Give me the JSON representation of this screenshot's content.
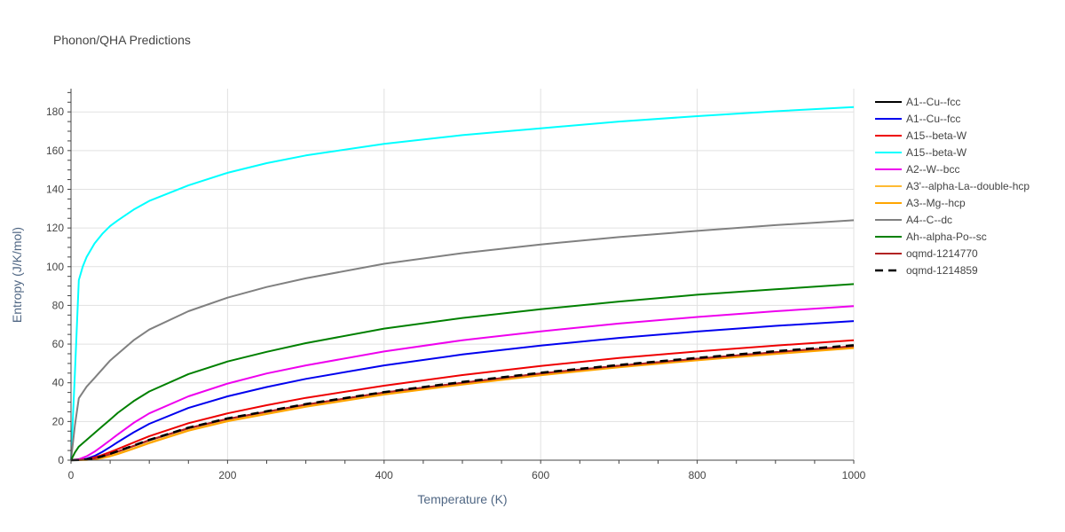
{
  "chart_data": {
    "type": "line",
    "title": "Phonon/QHA Predictions",
    "xlabel": "Temperature (K)",
    "ylabel": "Entropy (J/K/mol)",
    "xlim": [
      0,
      1000
    ],
    "ylim": [
      0,
      192
    ],
    "xticks": [
      0,
      200,
      400,
      600,
      800,
      1000
    ],
    "yticks": [
      0,
      20,
      40,
      60,
      80,
      100,
      120,
      140,
      160,
      180
    ],
    "grid": true,
    "legend_position": "right",
    "series": [
      {
        "name": "A1--Cu--fcc",
        "color": "#000000",
        "dash": "solid",
        "x": [
          0,
          10,
          20,
          30,
          40,
          50,
          60,
          80,
          100,
          150,
          200,
          300,
          400,
          500,
          600,
          700,
          800,
          900,
          1000
        ],
        "y": [
          0,
          0.1,
          0.3,
          0.9,
          1.9,
          3.1,
          4.5,
          7.4,
          10.3,
          16.5,
          21.3,
          28.7,
          34.9,
          40.0,
          44.8,
          48.8,
          52.4,
          55.8,
          58.9
        ]
      },
      {
        "name": "A1--Cu--fcc",
        "color": "#0000ee",
        "dash": "solid",
        "x": [
          0,
          10,
          20,
          30,
          40,
          50,
          60,
          80,
          100,
          150,
          200,
          250,
          300,
          400,
          500,
          600,
          700,
          800,
          900,
          1000
        ],
        "y": [
          0,
          0.1,
          0.8,
          2.2,
          4.3,
          6.8,
          9.4,
          14.4,
          18.8,
          27.0,
          33.0,
          37.8,
          42.0,
          49.0,
          54.6,
          59.2,
          63.2,
          66.5,
          69.4,
          71.9
        ]
      },
      {
        "name": "A15--beta-W",
        "color": "#ee0000",
        "dash": "solid",
        "x": [
          0,
          10,
          20,
          30,
          40,
          50,
          60,
          80,
          100,
          150,
          200,
          250,
          300,
          400,
          500,
          600,
          700,
          800,
          900,
          1000
        ],
        "y": [
          0,
          0.1,
          0.5,
          1.4,
          2.7,
          4.2,
          5.8,
          9.1,
          12.4,
          19.1,
          24.2,
          28.4,
          32.2,
          38.5,
          44.0,
          48.7,
          52.8,
          56.2,
          59.2,
          62.0
        ]
      },
      {
        "name": "A15--beta-W",
        "color": "#00ffff",
        "dash": "solid",
        "x": [
          0,
          5,
          10,
          15,
          20,
          30,
          40,
          50,
          60,
          80,
          100,
          150,
          200,
          250,
          300,
          400,
          500,
          600,
          700,
          800,
          900,
          1000
        ],
        "y": [
          0,
          45,
          93,
          100,
          105,
          112,
          117,
          121,
          124,
          129.5,
          134,
          142,
          148.5,
          153.5,
          157.5,
          163.5,
          168,
          171.5,
          175,
          177.8,
          180.3,
          182.5
        ]
      },
      {
        "name": "A2--W--bcc",
        "color": "#ee00ee",
        "dash": "solid",
        "x": [
          0,
          10,
          20,
          30,
          40,
          50,
          60,
          80,
          100,
          150,
          200,
          250,
          300,
          400,
          500,
          600,
          700,
          800,
          900,
          1000
        ],
        "y": [
          0,
          0.5,
          2.0,
          4.4,
          7.3,
          10.3,
          13.4,
          19.3,
          24.2,
          33.0,
          39.6,
          44.8,
          49.0,
          56.2,
          62.0,
          66.6,
          70.6,
          74.0,
          77.0,
          79.6
        ]
      },
      {
        "name": "A3'--alpha-La--double-hcp",
        "color": "#ffbb33",
        "dash": "solid",
        "x": [
          0,
          10,
          20,
          30,
          40,
          50,
          60,
          80,
          100,
          150,
          200,
          300,
          400,
          500,
          600,
          700,
          800,
          900,
          1000
        ],
        "y": [
          0,
          0.05,
          0.2,
          0.6,
          1.3,
          2.3,
          3.5,
          6.2,
          9.1,
          15.5,
          20.4,
          27.9,
          34.2,
          39.4,
          44.2,
          48.3,
          51.9,
          55.2,
          58.2
        ]
      },
      {
        "name": "A3--Mg--hcp",
        "color": "#ffa500",
        "dash": "solid",
        "x": [
          0,
          10,
          20,
          30,
          40,
          50,
          60,
          80,
          100,
          150,
          200,
          300,
          400,
          500,
          600,
          700,
          800,
          900,
          1000
        ],
        "y": [
          0,
          0.05,
          0.15,
          0.5,
          1.1,
          2.0,
          3.2,
          5.9,
          8.8,
          15.2,
          20.1,
          27.6,
          33.9,
          39.1,
          43.9,
          48.0,
          51.6,
          54.9,
          57.9
        ]
      },
      {
        "name": "A4--C--dc",
        "color": "#808080",
        "dash": "solid",
        "x": [
          0,
          5,
          10,
          20,
          30,
          40,
          50,
          60,
          80,
          100,
          150,
          200,
          250,
          300,
          400,
          500,
          600,
          700,
          800,
          900,
          1000
        ],
        "y": [
          0,
          18,
          32,
          38,
          42.5,
          47,
          51.5,
          55,
          62,
          67.5,
          77,
          84,
          89.5,
          94,
          101.5,
          107,
          111.5,
          115.3,
          118.5,
          121.5,
          124
        ]
      },
      {
        "name": "Ah--alpha-Po--sc",
        "color": "#008000",
        "dash": "solid",
        "x": [
          0,
          5,
          10,
          20,
          30,
          40,
          50,
          60,
          80,
          100,
          150,
          200,
          250,
          300,
          400,
          500,
          600,
          700,
          800,
          900,
          1000
        ],
        "y": [
          0,
          4,
          7,
          10.5,
          14,
          17.5,
          21,
          24.5,
          30.5,
          35.5,
          44.5,
          51,
          56,
          60.5,
          68,
          73.5,
          78,
          82,
          85.5,
          88.3,
          91
        ]
      },
      {
        "name": "oqmd-1214770",
        "color": "#b22222",
        "dash": "solid",
        "x": [
          0,
          10,
          20,
          30,
          40,
          50,
          60,
          80,
          100,
          150,
          200,
          300,
          400,
          500,
          600,
          700,
          800,
          900,
          1000
        ],
        "y": [
          0,
          0.1,
          0.3,
          0.9,
          1.9,
          3.1,
          4.5,
          7.4,
          10.3,
          16.5,
          21.3,
          28.7,
          34.9,
          40.0,
          44.8,
          48.8,
          52.4,
          55.8,
          58.9
        ]
      },
      {
        "name": "oqmd-1214859",
        "color": "#000000",
        "dash": "dash",
        "x": [
          0,
          10,
          20,
          30,
          40,
          50,
          60,
          80,
          100,
          150,
          200,
          300,
          400,
          500,
          600,
          700,
          800,
          900,
          1000
        ],
        "y": [
          0,
          0.1,
          0.4,
          1.0,
          2.0,
          3.3,
          4.7,
          7.6,
          10.5,
          16.8,
          21.6,
          29.0,
          35.2,
          40.4,
          45.2,
          49.2,
          52.9,
          56.3,
          59.4
        ]
      }
    ]
  }
}
